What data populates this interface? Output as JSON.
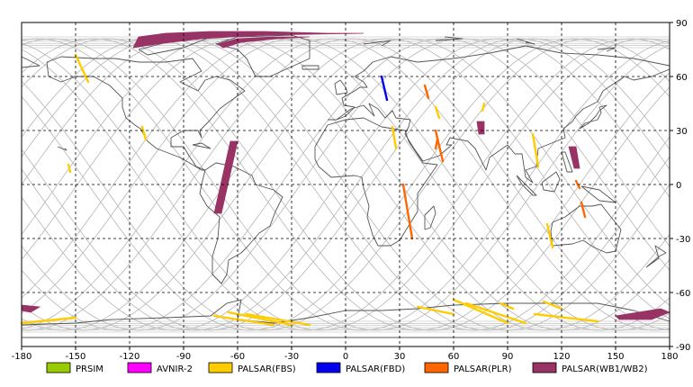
{
  "x_ticks": [
    "-180",
    "-150",
    "-120",
    "-90",
    "-60",
    "-30",
    "0",
    "30",
    "60",
    "90",
    "120",
    "150",
    "180"
  ],
  "y_ticks": [
    "90",
    "60",
    "30",
    "0",
    "-30",
    "-60",
    "-90"
  ],
  "x_range": [
    -180,
    180
  ],
  "y_range": [
    -90,
    90
  ],
  "legend": [
    {
      "label": "PRSIM",
      "color": "#99cc00"
    },
    {
      "label": "AVNIR-2",
      "color": "#ff00ff"
    },
    {
      "label": "PALSAR(FBS)",
      "color": "#ffcc00"
    },
    {
      "label": "PALSAR(FBD)",
      "color": "#0000ee"
    },
    {
      "label": "PALSAR(PLR)",
      "color": "#ff6600"
    },
    {
      "label": "PALSAR(WB1/WB2)",
      "color": "#993366"
    }
  ],
  "colors": {
    "land_outline": "#555555",
    "orbit_track": "#b4b4b4",
    "grid": "#000000"
  },
  "swaths": [
    {
      "type": "PALSAR(WB1/WB2)",
      "path": [
        [
          -115,
          82
        ],
        [
          -100,
          84
        ],
        [
          -75,
          85
        ],
        [
          -45,
          85
        ],
        [
          -10,
          84
        ],
        [
          10,
          84
        ],
        [
          -45,
          83
        ],
        [
          -80,
          81
        ],
        [
          -105,
          78
        ],
        [
          -118,
          76
        ]
      ]
    },
    {
      "type": "PALSAR(WB1/WB2)",
      "path": [
        [
          -71,
          78
        ],
        [
          -60,
          81
        ],
        [
          -40,
          82
        ],
        [
          -20,
          82
        ],
        [
          -38,
          81
        ],
        [
          -58,
          79
        ],
        [
          -68,
          76
        ]
      ]
    },
    {
      "type": "PALSAR(WB1/WB2)",
      "path": [
        [
          -64,
          24
        ],
        [
          -60,
          24
        ],
        [
          -69,
          -16
        ],
        [
          -73,
          -16
        ]
      ]
    },
    {
      "type": "PALSAR(WB1/WB2)",
      "path": [
        [
          -180,
          -67
        ],
        [
          -170,
          -68
        ],
        [
          -175,
          -71
        ],
        [
          -180,
          -70
        ]
      ]
    },
    {
      "type": "PALSAR(WB1/WB2)",
      "path": [
        [
          150,
          -73
        ],
        [
          175,
          -69
        ],
        [
          180,
          -71
        ],
        [
          170,
          -75
        ],
        [
          152,
          -75
        ]
      ]
    },
    {
      "type": "PALSAR(WB1/WB2)",
      "path": [
        [
          73,
          35
        ],
        [
          77,
          35
        ],
        [
          77,
          28
        ],
        [
          74,
          28
        ]
      ]
    },
    {
      "type": "PALSAR(WB1/WB2)",
      "path": [
        [
          124,
          21
        ],
        [
          128,
          21
        ],
        [
          130,
          9
        ],
        [
          127,
          9
        ]
      ]
    },
    {
      "type": "PALSAR(FBS)",
      "path": [
        [
          -150,
          72
        ],
        [
          -143,
          57
        ]
      ]
    },
    {
      "type": "PALSAR(FBS)",
      "path": [
        [
          -154,
          11
        ],
        [
          -153,
          7
        ]
      ]
    },
    {
      "type": "PALSAR(FBS)",
      "path": [
        [
          -113,
          32
        ],
        [
          -111,
          25
        ]
      ]
    },
    {
      "type": "PALSAR(FBS)",
      "path": [
        [
          -180,
          -77
        ],
        [
          -150,
          -74
        ]
      ]
    },
    {
      "type": "PALSAR(FBS)",
      "path": [
        [
          -73,
          -73
        ],
        [
          -40,
          -78
        ]
      ]
    },
    {
      "type": "PALSAR(FBS)",
      "path": [
        [
          -65,
          -71
        ],
        [
          -30,
          -78
        ]
      ]
    },
    {
      "type": "PALSAR(FBS)",
      "path": [
        [
          -55,
          -72
        ],
        [
          -20,
          -78
        ]
      ]
    },
    {
      "type": "PALSAR(FBS)",
      "path": [
        [
          40,
          -68
        ],
        [
          60,
          -72
        ]
      ]
    },
    {
      "type": "PALSAR(FBS)",
      "path": [
        [
          60,
          -64
        ],
        [
          90,
          -77
        ]
      ]
    },
    {
      "type": "PALSAR(FBS)",
      "path": [
        [
          67,
          -66
        ],
        [
          100,
          -77
        ]
      ]
    },
    {
      "type": "PALSAR(FBS)",
      "path": [
        [
          105,
          -72
        ],
        [
          140,
          -76
        ]
      ]
    },
    {
      "type": "PALSAR(FBS)",
      "path": [
        [
          110,
          -65
        ],
        [
          120,
          -69
        ]
      ]
    },
    {
      "type": "PALSAR(FBS)",
      "path": [
        [
          86,
          -66
        ],
        [
          93,
          -69
        ]
      ]
    },
    {
      "type": "PALSAR(FBS)",
      "path": [
        [
          50,
          43
        ],
        [
          52,
          37
        ]
      ]
    },
    {
      "type": "PALSAR(FBS)",
      "path": [
        [
          26,
          32
        ],
        [
          28,
          20
        ]
      ]
    },
    {
      "type": "PALSAR(FBS)",
      "path": [
        [
          104,
          28
        ],
        [
          107,
          10
        ]
      ]
    },
    {
      "type": "PALSAR(FBS)",
      "path": [
        [
          112,
          -22
        ],
        [
          115,
          -35
        ]
      ]
    },
    {
      "type": "PALSAR(FBS)",
      "path": [
        [
          77,
          45
        ],
        [
          76,
          41
        ]
      ]
    },
    {
      "type": "PALSAR(FBD)",
      "path": [
        [
          20,
          60
        ],
        [
          23,
          47
        ]
      ]
    },
    {
      "type": "PALSAR(PLR)",
      "path": [
        [
          44,
          55
        ],
        [
          46,
          48
        ]
      ]
    },
    {
      "type": "PALSAR(PLR)",
      "path": [
        [
          50,
          30
        ],
        [
          54,
          13
        ]
      ]
    },
    {
      "type": "PALSAR(PLR)",
      "path": [
        [
          32,
          0
        ],
        [
          37,
          -30
        ]
      ]
    },
    {
      "type": "PALSAR(PLR)",
      "path": [
        [
          131,
          -10
        ],
        [
          133,
          -18
        ]
      ]
    },
    {
      "type": "PALSAR(PLR)",
      "path": [
        [
          128,
          2
        ],
        [
          130,
          -2
        ]
      ]
    },
    {
      "type": "PALSAR(PLR)",
      "path": [
        [
          51,
          25
        ],
        [
          50,
          20
        ]
      ]
    }
  ],
  "land": [
    [
      [
        -166,
        68
      ],
      [
        -158,
        71
      ],
      [
        -140,
        70
      ],
      [
        -128,
        70
      ],
      [
        -115,
        68
      ],
      [
        -100,
        68
      ],
      [
        -85,
        70
      ],
      [
        -80,
        63
      ],
      [
        -92,
        57
      ],
      [
        -82,
        52
      ],
      [
        -78,
        58
      ],
      [
        -72,
        60
      ],
      [
        -64,
        58
      ],
      [
        -56,
        52
      ],
      [
        -66,
        45
      ],
      [
        -70,
        42
      ],
      [
        -76,
        35
      ],
      [
        -81,
        30
      ],
      [
        -80,
        26
      ],
      [
        -82,
        30
      ],
      [
        -90,
        30
      ],
      [
        -97,
        26
      ],
      [
        -97,
        21
      ],
      [
        -90,
        21
      ],
      [
        -87,
        16
      ],
      [
        -83,
        10
      ],
      [
        -78,
        8
      ],
      [
        -80,
        8
      ],
      [
        -85,
        11
      ],
      [
        -92,
        15
      ],
      [
        -105,
        20
      ],
      [
        -110,
        24
      ],
      [
        -114,
        31
      ],
      [
        -117,
        33
      ],
      [
        -122,
        37
      ],
      [
        -124,
        43
      ],
      [
        -124,
        48
      ],
      [
        -131,
        55
      ],
      [
        -140,
        60
      ],
      [
        -150,
        60
      ],
      [
        -158,
        57
      ],
      [
        -165,
        60
      ],
      [
        -166,
        68
      ]
    ],
    [
      [
        -78,
        8
      ],
      [
        -72,
        12
      ],
      [
        -62,
        10
      ],
      [
        -52,
        5
      ],
      [
        -50,
        0
      ],
      [
        -40,
        -3
      ],
      [
        -35,
        -7
      ],
      [
        -39,
        -15
      ],
      [
        -42,
        -23
      ],
      [
        -48,
        -27
      ],
      [
        -55,
        -35
      ],
      [
        -58,
        -38
      ],
      [
        -65,
        -42
      ],
      [
        -66,
        -50
      ],
      [
        -69,
        -55
      ],
      [
        -74,
        -50
      ],
      [
        -74,
        -40
      ],
      [
        -71,
        -30
      ],
      [
        -70,
        -18
      ],
      [
        -77,
        -12
      ],
      [
        -81,
        -5
      ],
      [
        -80,
        0
      ],
      [
        -78,
        8
      ]
    ],
    [
      [
        -10,
        36
      ],
      [
        -5,
        36
      ],
      [
        0,
        38
      ],
      [
        5,
        43
      ],
      [
        -1,
        44
      ],
      [
        -2,
        48
      ],
      [
        5,
        52
      ],
      [
        8,
        54
      ],
      [
        12,
        54
      ],
      [
        10,
        57
      ],
      [
        5,
        60
      ],
      [
        10,
        63
      ],
      [
        15,
        68
      ],
      [
        25,
        71
      ],
      [
        40,
        68
      ],
      [
        60,
        70
      ],
      [
        80,
        73
      ],
      [
        100,
        77
      ],
      [
        120,
        73
      ],
      [
        140,
        72
      ],
      [
        160,
        70
      ],
      [
        180,
        66
      ],
      [
        180,
        64
      ],
      [
        170,
        60
      ],
      [
        160,
        58
      ],
      [
        155,
        60
      ],
      [
        143,
        52
      ],
      [
        140,
        46
      ],
      [
        132,
        42
      ],
      [
        128,
        38
      ],
      [
        126,
        35
      ],
      [
        121,
        31
      ],
      [
        122,
        26
      ],
      [
        112,
        22
      ],
      [
        107,
        20
      ],
      [
        106,
        10
      ],
      [
        100,
        8
      ],
      [
        104,
        1
      ],
      [
        100,
        4
      ],
      [
        98,
        17
      ],
      [
        94,
        17
      ],
      [
        90,
        22
      ],
      [
        80,
        15
      ],
      [
        78,
        8
      ],
      [
        72,
        20
      ],
      [
        68,
        24
      ],
      [
        58,
        26
      ],
      [
        56,
        22
      ],
      [
        59,
        22
      ],
      [
        52,
        16
      ],
      [
        43,
        13
      ],
      [
        38,
        20
      ],
      [
        33,
        28
      ],
      [
        35,
        32
      ],
      [
        36,
        36
      ],
      [
        28,
        37
      ],
      [
        26,
        41
      ],
      [
        22,
        37
      ],
      [
        18,
        42
      ],
      [
        13,
        45
      ],
      [
        16,
        38
      ],
      [
        10,
        44
      ],
      [
        3,
        42
      ],
      [
        -5,
        36
      ],
      [
        -10,
        36
      ]
    ],
    [
      [
        -17,
        21
      ],
      [
        -17,
        14
      ],
      [
        -15,
        10
      ],
      [
        -8,
        4
      ],
      [
        5,
        5
      ],
      [
        9,
        4
      ],
      [
        10,
        -2
      ],
      [
        13,
        -12
      ],
      [
        12,
        -18
      ],
      [
        15,
        -28
      ],
      [
        18,
        -34
      ],
      [
        25,
        -34
      ],
      [
        30,
        -31
      ],
      [
        35,
        -23
      ],
      [
        40,
        -15
      ],
      [
        40,
        -5
      ],
      [
        51,
        11
      ],
      [
        43,
        12
      ],
      [
        35,
        24
      ],
      [
        33,
        30
      ],
      [
        20,
        32
      ],
      [
        10,
        37
      ],
      [
        0,
        36
      ],
      [
        -10,
        33
      ],
      [
        -17,
        21
      ]
    ],
    [
      [
        115,
        -21
      ],
      [
        122,
        -18
      ],
      [
        130,
        -12
      ],
      [
        137,
        -12
      ],
      [
        142,
        -11
      ],
      [
        145,
        -15
      ],
      [
        153,
        -25
      ],
      [
        150,
        -37
      ],
      [
        145,
        -38
      ],
      [
        138,
        -35
      ],
      [
        132,
        -31
      ],
      [
        126,
        -33
      ],
      [
        115,
        -34
      ],
      [
        114,
        -26
      ],
      [
        115,
        -21
      ]
    ],
    [
      [
        -180,
        -85
      ],
      [
        180,
        -85
      ],
      [
        180,
        -76
      ],
      [
        160,
        -70
      ],
      [
        140,
        -66
      ],
      [
        110,
        -66
      ],
      [
        90,
        -66
      ],
      [
        60,
        -67
      ],
      [
        40,
        -69
      ],
      [
        20,
        -70
      ],
      [
        0,
        -70
      ],
      [
        -20,
        -74
      ],
      [
        -40,
        -77
      ],
      [
        -60,
        -75
      ],
      [
        -58,
        -64
      ],
      [
        -66,
        -66
      ],
      [
        -75,
        -73
      ],
      [
        -100,
        -74
      ],
      [
        -130,
        -75
      ],
      [
        -150,
        -77
      ],
      [
        -180,
        -78
      ],
      [
        -180,
        -85
      ]
    ],
    [
      [
        -50,
        60
      ],
      [
        -42,
        60
      ],
      [
        -20,
        70
      ],
      [
        -20,
        80
      ],
      [
        -30,
        83
      ],
      [
        -60,
        82
      ],
      [
        -72,
        78
      ],
      [
        -60,
        75
      ],
      [
        -55,
        70
      ],
      [
        -50,
        60
      ]
    ],
    [
      [
        -5,
        50
      ],
      [
        1,
        51
      ],
      [
        0,
        54
      ],
      [
        -3,
        58
      ],
      [
        -6,
        56
      ],
      [
        -5,
        50
      ]
    ],
    [
      [
        130,
        31
      ],
      [
        133,
        34
      ],
      [
        140,
        36
      ],
      [
        142,
        40
      ],
      [
        141,
        43
      ],
      [
        145,
        44
      ],
      [
        141,
        41
      ],
      [
        139,
        38
      ],
      [
        135,
        34
      ],
      [
        130,
        31
      ]
    ],
    [
      [
        44,
        -25
      ],
      [
        47,
        -24
      ],
      [
        50,
        -16
      ],
      [
        49,
        -12
      ],
      [
        44,
        -17
      ],
      [
        44,
        -25
      ]
    ],
    [
      [
        95,
        5
      ],
      [
        102,
        -2
      ],
      [
        106,
        -6
      ],
      [
        104,
        -6
      ],
      [
        98,
        0
      ],
      [
        95,
        5
      ]
    ],
    [
      [
        109,
        1
      ],
      [
        110,
        -3
      ],
      [
        116,
        -4
      ],
      [
        119,
        3
      ],
      [
        117,
        7
      ],
      [
        109,
        1
      ]
    ],
    [
      [
        131,
        -1
      ],
      [
        141,
        -3
      ],
      [
        150,
        -10
      ],
      [
        141,
        -9
      ],
      [
        131,
        -1
      ]
    ],
    [
      [
        -24,
        64
      ],
      [
        -15,
        64
      ],
      [
        -15,
        66
      ],
      [
        -24,
        66
      ],
      [
        -24,
        64
      ]
    ],
    [
      [
        -180,
        71
      ],
      [
        -170,
        66
      ],
      [
        -180,
        65
      ]
    ],
    [
      [
        167,
        -46
      ],
      [
        174,
        -40
      ],
      [
        178,
        -38
      ],
      [
        172,
        -34
      ],
      [
        174,
        -41
      ],
      [
        167,
        -46
      ]
    ],
    [
      [
        120,
        18
      ],
      [
        122,
        18
      ],
      [
        126,
        7
      ],
      [
        123,
        7
      ],
      [
        120,
        18
      ]
    ],
    [
      [
        -85,
        22
      ],
      [
        -75,
        20
      ],
      [
        -80,
        23
      ],
      [
        -85,
        22
      ]
    ],
    [
      [
        -115,
        75
      ],
      [
        -95,
        80
      ],
      [
        -75,
        82
      ],
      [
        -90,
        76
      ],
      [
        -110,
        72
      ],
      [
        -115,
        75
      ]
    ],
    [
      [
        50,
        80
      ],
      [
        65,
        81
      ],
      [
        55,
        82
      ]
    ],
    [
      [
        100,
        79
      ],
      [
        105,
        78
      ],
      [
        95,
        81
      ]
    ],
    [
      [
        140,
        75
      ],
      [
        150,
        76
      ],
      [
        145,
        74
      ]
    ],
    [
      [
        -160,
        21
      ],
      [
        -155,
        19
      ],
      [
        -156,
        20
      ]
    ],
    [
      [
        10,
        78
      ],
      [
        25,
        80
      ],
      [
        20,
        77
      ]
    ]
  ]
}
